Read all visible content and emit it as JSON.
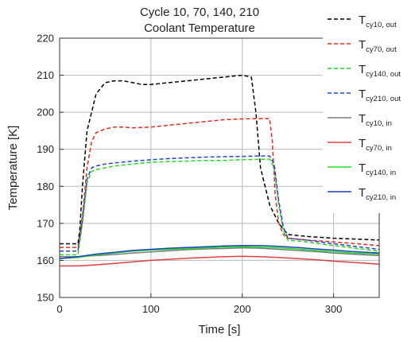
{
  "chart_data": {
    "type": "line",
    "title_lines": [
      "Cycle 10, 70, 140, 210",
      "Coolant Temperature"
    ],
    "xlabel": "Time [s]",
    "ylabel": "Temperature [K]",
    "xlim": [
      0,
      350
    ],
    "ylim": [
      150,
      220
    ],
    "xticks": [
      0,
      100,
      200,
      300
    ],
    "yticks": [
      150,
      160,
      170,
      180,
      190,
      200,
      210,
      220
    ],
    "grid": true,
    "legend_position": "top-right",
    "series": [
      {
        "name_main": "T",
        "name_sub": "cy10, out",
        "color": "#000000",
        "dash": "dashed",
        "x": [
          0,
          10,
          20,
          22,
          25,
          30,
          40,
          50,
          60,
          70,
          80,
          90,
          100,
          120,
          140,
          160,
          180,
          200,
          210,
          215,
          220,
          230,
          240,
          250,
          270,
          300,
          350
        ],
        "y": [
          164.5,
          164.5,
          164.5,
          168,
          180,
          195,
          205,
          208,
          208.5,
          208.5,
          208,
          207.5,
          207.5,
          208,
          208.5,
          209,
          209.5,
          210,
          209.5,
          200,
          185,
          175,
          170,
          167,
          166.5,
          166,
          165.5
        ]
      },
      {
        "name_main": "T",
        "name_sub": "cy70, out",
        "color": "#e8281e",
        "dash": "dashed",
        "x": [
          0,
          10,
          20,
          25,
          30,
          35,
          40,
          50,
          60,
          70,
          80,
          100,
          120,
          140,
          160,
          180,
          200,
          220,
          230,
          233,
          236,
          240,
          245,
          250,
          270,
          300,
          350
        ],
        "y": [
          163.5,
          163.5,
          163.5,
          172,
          185,
          192,
          194.5,
          195.5,
          196,
          196,
          195.8,
          196,
          196.5,
          197,
          197.5,
          198,
          198.2,
          198.3,
          198.3,
          192,
          178,
          170,
          167,
          166,
          165.5,
          165,
          164
        ]
      },
      {
        "name_main": "T",
        "name_sub": "cy140, out",
        "color": "#22d822",
        "dash": "dashed",
        "x": [
          0,
          10,
          20,
          25,
          30,
          35,
          40,
          50,
          60,
          80,
          100,
          120,
          140,
          160,
          180,
          200,
          220,
          230,
          235,
          240,
          245,
          250,
          270,
          300,
          350
        ],
        "y": [
          161.5,
          161.5,
          161.5,
          170,
          181,
          184,
          184.5,
          185,
          185.5,
          186,
          186.5,
          186.7,
          186.8,
          187,
          187,
          187.2,
          187.3,
          187.3,
          185,
          175,
          168,
          165.5,
          165,
          164,
          162.5
        ]
      },
      {
        "name_main": "T",
        "name_sub": "cy210, out",
        "color": "#2244cc",
        "dash": "dashed",
        "x": [
          0,
          10,
          20,
          25,
          30,
          35,
          40,
          50,
          60,
          80,
          100,
          120,
          140,
          160,
          180,
          200,
          220,
          230,
          235,
          240,
          245,
          250,
          270,
          300,
          350
        ],
        "y": [
          162.5,
          162.5,
          162.5,
          171,
          182,
          185,
          185.5,
          186,
          186.3,
          186.8,
          187.2,
          187.5,
          187.7,
          187.9,
          188,
          188.1,
          188.2,
          188.2,
          186,
          176,
          169,
          166,
          165.5,
          164.5,
          163
        ]
      },
      {
        "name_main": "T",
        "name_sub": "cy10, in",
        "color": "#7a7a7a",
        "dash": "solid",
        "x": [
          0,
          20,
          40,
          60,
          80,
          100,
          120,
          140,
          160,
          180,
          200,
          220,
          240,
          260,
          280,
          300,
          320,
          350
        ],
        "y": [
          161,
          161,
          161.3,
          161.6,
          162,
          162.3,
          162.6,
          162.9,
          163.1,
          163.2,
          163.4,
          163.3,
          163,
          162.7,
          162.4,
          162,
          161.7,
          161.3
        ]
      },
      {
        "name_main": "T",
        "name_sub": "cy70, in",
        "color": "#e04040",
        "dash": "solid",
        "x": [
          0,
          20,
          40,
          60,
          80,
          100,
          120,
          140,
          160,
          180,
          200,
          220,
          240,
          260,
          280,
          300,
          320,
          350
        ],
        "y": [
          158.5,
          158.5,
          158.8,
          159.2,
          159.6,
          160,
          160.3,
          160.6,
          160.8,
          161,
          161.1,
          161,
          160.8,
          160.5,
          160.2,
          159.8,
          159.5,
          159
        ]
      },
      {
        "name_main": "T",
        "name_sub": "cy140, in",
        "color": "#22e022",
        "dash": "solid",
        "x": [
          0,
          20,
          40,
          60,
          80,
          100,
          120,
          140,
          160,
          180,
          200,
          220,
          240,
          260,
          280,
          300,
          320,
          350
        ],
        "y": [
          160.5,
          160.8,
          161.5,
          162,
          162.5,
          162.8,
          163,
          163.2,
          163.4,
          163.6,
          163.7,
          163.6,
          163.4,
          163.1,
          162.7,
          162.4,
          162,
          161.7
        ]
      },
      {
        "name_main": "T",
        "name_sub": "cy210, in",
        "color": "#1f3fc4",
        "dash": "solid",
        "x": [
          0,
          20,
          40,
          60,
          80,
          100,
          120,
          140,
          160,
          180,
          200,
          220,
          240,
          260,
          280,
          300,
          320,
          350
        ],
        "y": [
          160.5,
          161,
          161.7,
          162.2,
          162.7,
          163,
          163.3,
          163.5,
          163.7,
          163.9,
          164,
          164,
          163.8,
          163.5,
          163.1,
          162.8,
          162.4,
          162
        ]
      }
    ]
  }
}
